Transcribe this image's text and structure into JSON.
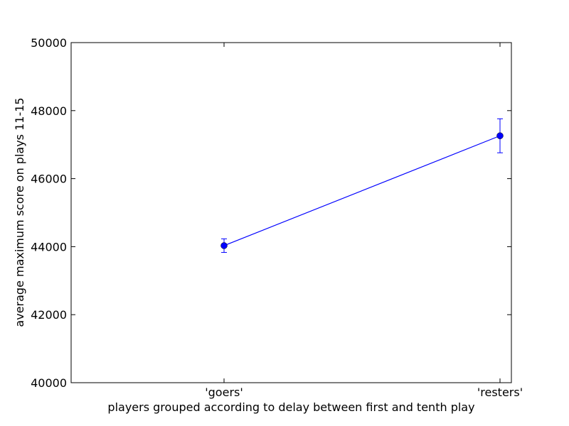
{
  "chart_data": {
    "type": "line",
    "title": "",
    "xlabel": "players grouped according to delay between first and tenth play",
    "ylabel": "average maximum score on plays 11-15",
    "categories": [
      "'goers'",
      "'resters'"
    ],
    "series": [
      {
        "values": [
          44030,
          47260
        ],
        "errors": [
          200,
          500
        ],
        "color": "#0000ff"
      }
    ],
    "ylim": [
      40000,
      50000
    ],
    "yticks": [
      40000,
      42000,
      44000,
      46000,
      48000,
      50000
    ],
    "ytick_labels": [
      "40000",
      "42000",
      "44000",
      "46000",
      "48000",
      "50000"
    ],
    "grid": false,
    "legend": "none"
  }
}
